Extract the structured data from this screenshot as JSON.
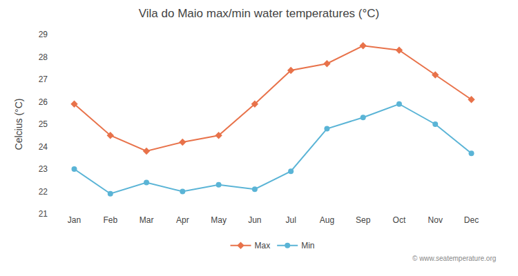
{
  "chart_data": {
    "type": "line",
    "title": "Vila do Maio max/min water temperatures (°C)",
    "y_label": "Celcius (°C)",
    "categories": [
      "Jan",
      "Feb",
      "Mar",
      "Apr",
      "May",
      "Jun",
      "Jul",
      "Aug",
      "Sep",
      "Oct",
      "Nov",
      "Dec"
    ],
    "series": [
      {
        "name": "Max",
        "color": "#e8724a",
        "marker": "diamond",
        "line_style": "solid",
        "values": [
          25.9,
          24.5,
          23.8,
          24.2,
          24.5,
          25.9,
          27.4,
          27.7,
          28.5,
          28.3,
          27.2,
          26.1
        ]
      },
      {
        "name": "Min",
        "color": "#5ab4d6",
        "marker": "circle",
        "line_style": "solid",
        "values": [
          23.0,
          21.9,
          22.4,
          22.0,
          22.3,
          22.1,
          22.9,
          24.8,
          25.3,
          25.9,
          25.0,
          23.7
        ]
      }
    ],
    "ylim": [
      21,
      29
    ],
    "yticks": [
      21,
      22,
      23,
      24,
      25,
      26,
      27,
      28,
      29
    ],
    "grid": false,
    "legend": "bottom",
    "annotations": [
      "© www.seatemperature.org"
    ]
  }
}
